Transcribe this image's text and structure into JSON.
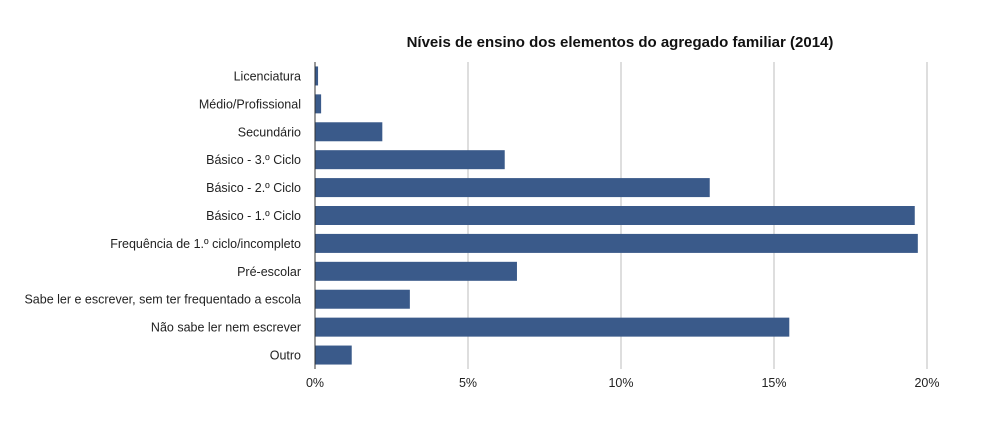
{
  "chart_data": {
    "type": "bar",
    "orientation": "horizontal",
    "title": "Níveis de ensino dos elementos do agregado familiar (2014)",
    "xlabel": "",
    "ylabel": "",
    "categories": [
      "Licenciatura",
      "Médio/Profissional",
      "Secundário",
      "Básico - 3.º Ciclo",
      "Básico - 2.º Ciclo",
      "Básico - 1.º Ciclo",
      "Frequência de 1.º ciclo/incompleto",
      "Pré-escolar",
      "Sabe ler e escrever, sem ter frequentado a escola",
      "Não sabe ler nem escrever",
      "Outro"
    ],
    "values": [
      0.1,
      0.2,
      2.2,
      6.2,
      12.9,
      19.6,
      19.7,
      6.6,
      3.1,
      15.5,
      1.2
    ],
    "xlim": [
      0,
      20
    ],
    "xticks": [
      0,
      5,
      10,
      15,
      20
    ],
    "xtick_labels": [
      "0%",
      "5%",
      "10%",
      "15%",
      "20%"
    ],
    "grid": "vertical",
    "legend": "none",
    "bar_color": "#3a5a8a"
  }
}
